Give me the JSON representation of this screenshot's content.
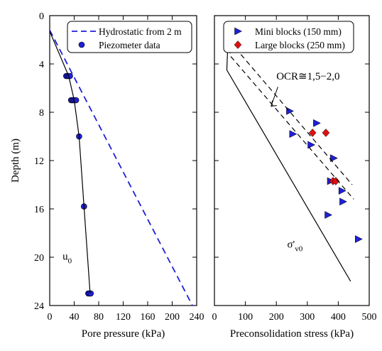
{
  "chart_data": [
    {
      "type": "scatter",
      "xlabel": "Pore pressure (kPa)",
      "ylabel": "Depth (m)",
      "xlim": [
        0,
        240
      ],
      "ylim": [
        0,
        24
      ],
      "y_inverted": true,
      "xticks": [
        0,
        40,
        80,
        120,
        160,
        200,
        240
      ],
      "yticks": [
        0,
        4,
        8,
        12,
        16,
        20,
        24
      ],
      "legend": {
        "placement": "top-right",
        "entries": [
          {
            "label": "Hydrostatic from 2 m",
            "style": "dashed-line",
            "color": "#1f1fd6"
          },
          {
            "label": "Piezometer data",
            "style": "circle",
            "color": "#1f1fd6"
          }
        ]
      },
      "series": [
        {
          "name": "Hydrostatic from 2 m",
          "style": "dashed-line",
          "color": "#1f1fd6",
          "points": [
            [
              0,
              1.2
            ],
            [
              233,
              24
            ]
          ]
        },
        {
          "name": "Piezometer data",
          "style": "circle",
          "color": "#1f1fd6",
          "points": [
            [
              27,
              5.0
            ],
            [
              29,
              5.0
            ],
            [
              31,
              5.0
            ],
            [
              33,
              5.0
            ],
            [
              35,
              7.0
            ],
            [
              37,
              7.0
            ],
            [
              39,
              7.0
            ],
            [
              41,
              7.0
            ],
            [
              43,
              7.0
            ],
            [
              48,
              10.0
            ],
            [
              56,
              15.8
            ],
            [
              63,
              23.0
            ],
            [
              65,
              23.0
            ],
            [
              67,
              23.0
            ]
          ]
        },
        {
          "name": "u0",
          "style": "solid-line",
          "color": "#000000",
          "points": [
            [
              0,
              1.3
            ],
            [
              31,
              5.0
            ],
            [
              40,
              7.0
            ],
            [
              48,
              10.0
            ],
            [
              56,
              15.8
            ],
            [
              66,
              23.0
            ]
          ]
        }
      ],
      "annotations": [
        {
          "text_main": "u",
          "text_sub": "0",
          "x": 21,
          "y": 20.2
        }
      ]
    },
    {
      "type": "scatter",
      "xlabel": "Preconsolidation stress (kPa)",
      "ylabel": "",
      "xlim": [
        0,
        500
      ],
      "ylim": [
        0,
        24
      ],
      "y_inverted": true,
      "xticks": [
        0,
        100,
        200,
        300,
        400,
        500
      ],
      "yticks": [
        0,
        4,
        8,
        12,
        16,
        20,
        24
      ],
      "legend": {
        "placement": "top-right",
        "entries": [
          {
            "label": "Mini blocks (150 mm)",
            "style": "triangle",
            "color": "#1f1fd6"
          },
          {
            "label": "Large blocks (250 mm)",
            "style": "diamond",
            "color": "#e01010"
          }
        ]
      },
      "series": [
        {
          "name": "Mini blocks (150 mm)",
          "style": "triangle",
          "color": "#1f1fd6",
          "points": [
            [
              243,
              7.9
            ],
            [
              330,
              8.9
            ],
            [
              253,
              9.8
            ],
            [
              312,
              10.7
            ],
            [
              385,
              11.8
            ],
            [
              375,
              13.7
            ],
            [
              412,
              14.5
            ],
            [
              415,
              15.4
            ],
            [
              367,
              16.5
            ],
            [
              465,
              18.5
            ]
          ]
        },
        {
          "name": "Large blocks (250 mm)",
          "style": "diamond",
          "color": "#e01010",
          "points": [
            [
              317,
              9.7
            ],
            [
              360,
              9.7
            ],
            [
              383,
              13.7
            ],
            [
              392,
              13.7
            ]
          ]
        },
        {
          "name": "σ'v0",
          "style": "solid-line",
          "color": "#000000",
          "points": [
            [
              45,
              1.3
            ],
            [
              40,
              4.5
            ],
            [
              440,
              22.0
            ]
          ]
        },
        {
          "name": "OCR lower",
          "style": "dashed-line",
          "color": "#000000",
          "points": [
            [
              55,
              1.3
            ],
            [
              50,
              3.3
            ],
            [
              450,
              15.2
            ]
          ]
        },
        {
          "name": "OCR upper",
          "style": "dashed-line",
          "color": "#000000",
          "points": [
            [
              70,
              1.3
            ],
            [
              65,
              2.6
            ],
            [
              445,
              14.0
            ]
          ]
        }
      ],
      "annotations": [
        {
          "text_main": "OCR≅1,5−2,0",
          "text_sub": "",
          "x": 200,
          "y": 5.3
        },
        {
          "text_main": "σ'",
          "text_sub": "v0",
          "x": 235,
          "y": 19.2
        }
      ]
    }
  ]
}
